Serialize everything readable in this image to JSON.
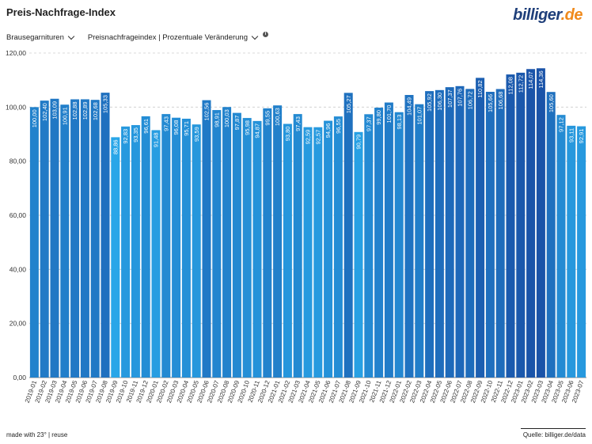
{
  "header": {
    "title": "Preis-Nachfrage-Index",
    "logo_part1": "billiger",
    "logo_part2": ".de"
  },
  "controls": {
    "category_label": "Brausegarnituren",
    "metric_label": "Preisnachfrageindex | Prozentuale Veränderung",
    "info_glyph": "i"
  },
  "footer": {
    "made_with": "made with 23° | reuse",
    "source": "Quelle: billiger.de/data"
  },
  "colors": {
    "bar_low": "#29a6e8",
    "bar_high": "#1a53a8",
    "grid": "#cccccc"
  },
  "chart_data": {
    "type": "bar",
    "ylim": [
      0,
      120
    ],
    "yticks": [
      "0,00",
      "20,00",
      "40,00",
      "60,00",
      "80,00",
      "100,00",
      "120,00"
    ],
    "grid": true,
    "categories": [
      "2019-01",
      "2019-02",
      "2019-03",
      "2019-04",
      "2019-05",
      "2019-06",
      "2019-07",
      "2019-08",
      "2019-09",
      "2019-10",
      "2019-11",
      "2019-12",
      "2020-01",
      "2020-02",
      "2020-03",
      "2020-04",
      "2020-05",
      "2020-06",
      "2020-07",
      "2020-08",
      "2020-09",
      "2020-10",
      "2020-11",
      "2020-12",
      "2021-01",
      "2021-02",
      "2021-03",
      "2021-04",
      "2021-05",
      "2021-06",
      "2021-07",
      "2021-08",
      "2021-09",
      "2021-10",
      "2021-11",
      "2021-12",
      "2022-01",
      "2022-02",
      "2022-03",
      "2022-04",
      "2022-05",
      "2022-06",
      "2022-07",
      "2022-08",
      "2022-09",
      "2022-10",
      "2022-11",
      "2022-12",
      "2023-01",
      "2023-02",
      "2023-03",
      "2023-04",
      "2023-05",
      "2023-06",
      "2023-07"
    ],
    "values": [
      100.0,
      102.4,
      103.09,
      100.91,
      102.88,
      102.89,
      102.68,
      105.33,
      88.86,
      92.83,
      93.35,
      96.61,
      91.48,
      97.43,
      96.08,
      95.71,
      93.59,
      102.56,
      98.91,
      100.03,
      97.87,
      95.98,
      94.87,
      99.55,
      100.63,
      93.8,
      97.43,
      92.59,
      92.57,
      94.96,
      96.55,
      105.27,
      90.79,
      97.37,
      99.8,
      101.7,
      98.13,
      104.49,
      101.07,
      105.92,
      106.3,
      107.37,
      107.76,
      106.72,
      110.82,
      105.66,
      106.68,
      112.08,
      112.72,
      114.07,
      114.36,
      105.6,
      97.12,
      93.11,
      92.91
    ],
    "labels": [
      "100,00",
      "102,40",
      "103,09",
      "100,91",
      "102,88",
      "102,89",
      "102,68",
      "105,33",
      "88,86",
      "92,83",
      "93,35",
      "96,61",
      "91,48",
      "97,43",
      "96,08",
      "95,71",
      "93,59",
      "102,56",
      "98,91",
      "100,03",
      "97,87",
      "95,98",
      "94,87",
      "99,55",
      "100,63",
      "93,80",
      "97,43",
      "92,59",
      "92,57",
      "94,96",
      "96,55",
      "105,27",
      "90,79",
      "97,37",
      "99,80",
      "101,70",
      "98,13",
      "104,49",
      "101,07",
      "105,92",
      "106,30",
      "107,37",
      "107,76",
      "106,72",
      "110,82",
      "105,66",
      "106,68",
      "112,08",
      "112,72",
      "114,07",
      "114,36",
      "105,60",
      "97,12",
      "93,11",
      "92,91"
    ]
  }
}
